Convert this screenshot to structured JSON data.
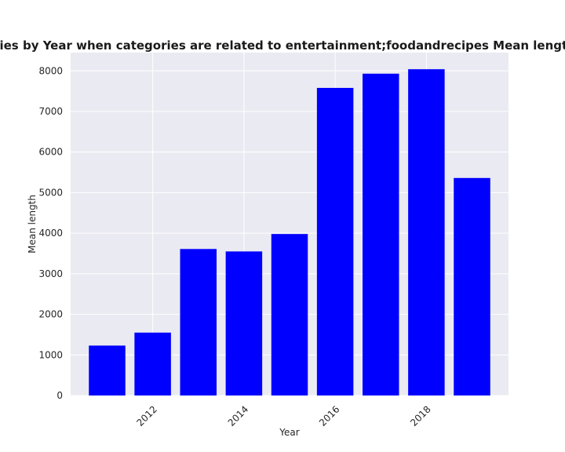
{
  "chart_data": {
    "type": "bar",
    "title": "Mean length in privacy policies by Year when categories are related to entertainment;foodandrecipes Mean length in privacy policies by Year",
    "xlabel": "Year",
    "ylabel": "Mean length",
    "x": [
      2011,
      2012,
      2013,
      2014,
      2015,
      2016,
      2017,
      2018,
      2019
    ],
    "values": [
      1230,
      1550,
      3610,
      3550,
      3980,
      7580,
      7930,
      8040,
      5360
    ],
    "xticks": [
      2012,
      2014,
      2016,
      2018
    ],
    "yticks": [
      0,
      1000,
      2000,
      3000,
      4000,
      5000,
      6000,
      7000,
      8000
    ],
    "xlim": [
      2010.2,
      2019.8
    ],
    "ylim": [
      0,
      8450
    ],
    "bar_color": "#0000ff",
    "grid": true,
    "background": "#eaeaf2"
  }
}
